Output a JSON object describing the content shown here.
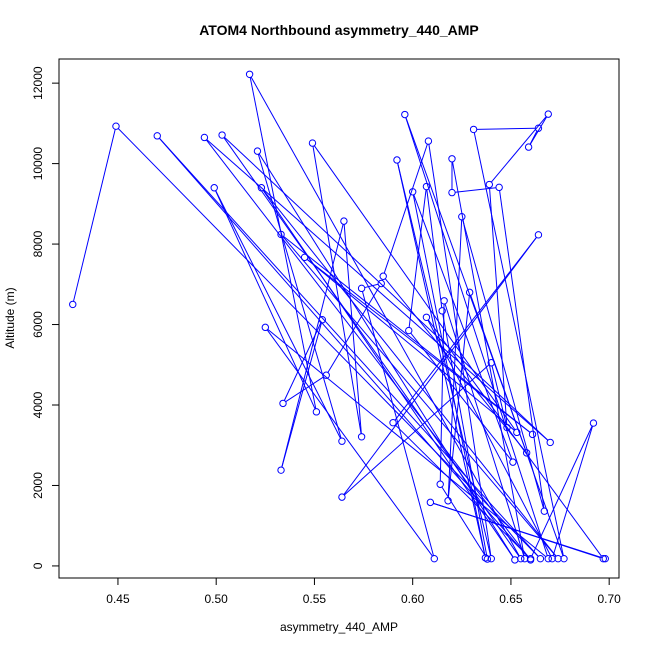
{
  "chart_data": {
    "type": "line",
    "title": "ATOM4 Northbound asymmetry_440_AMP",
    "xlabel": "asymmetry_440_AMP",
    "ylabel": "Altitude (m)",
    "xlim": [
      0.42,
      0.705
    ],
    "ylim": [
      -300,
      12600
    ],
    "xticks": [
      0.45,
      0.5,
      0.55,
      0.6,
      0.65,
      0.7
    ],
    "xtick_labels": [
      "0.45",
      "0.50",
      "0.55",
      "0.60",
      "0.65",
      "0.70"
    ],
    "yticks": [
      0,
      2000,
      4000,
      6000,
      8000,
      10000,
      12000
    ],
    "ytick_labels": [
      "0",
      "2000",
      "4000",
      "6000",
      "8000",
      "10000",
      "12000"
    ],
    "grid": false,
    "marker": "open-circle",
    "series": [
      {
        "color": "#0000ff",
        "points": [
          [
            0.427,
            6500
          ],
          [
            0.449,
            10930
          ],
          [
            0.665,
            180
          ],
          [
            0.47,
            10690
          ],
          [
            0.66,
            150
          ],
          [
            0.494,
            10650
          ],
          [
            0.67,
            3070
          ],
          [
            0.503,
            10710
          ],
          [
            0.655,
            180
          ],
          [
            0.517,
            12220
          ],
          [
            0.551,
            3830
          ],
          [
            0.499,
            9400
          ],
          [
            0.564,
            3100
          ],
          [
            0.521,
            10310
          ],
          [
            0.652,
            150
          ],
          [
            0.523,
            9400
          ],
          [
            0.674,
            180
          ],
          [
            0.533,
            8240
          ],
          [
            0.661,
            3270
          ],
          [
            0.545,
            7670
          ],
          [
            0.653,
            3320
          ],
          [
            0.549,
            10510
          ],
          [
            0.574,
            3210
          ],
          [
            0.565,
            8570
          ],
          [
            0.533,
            2380
          ],
          [
            0.554,
            6120
          ],
          [
            0.534,
            4040
          ],
          [
            0.556,
            4740
          ],
          [
            0.584,
            7020
          ],
          [
            0.574,
            6900
          ],
          [
            0.611,
            180
          ],
          [
            0.525,
            5930
          ],
          [
            0.669,
            180
          ],
          [
            0.596,
            11220
          ],
          [
            0.658,
            2810
          ],
          [
            0.585,
            7200
          ],
          [
            0.608,
            10560
          ],
          [
            0.64,
            180
          ],
          [
            0.592,
            10090
          ],
          [
            0.637,
            200
          ],
          [
            0.6,
            9300
          ],
          [
            0.651,
            2580
          ],
          [
            0.598,
            5850
          ],
          [
            0.607,
            9430
          ],
          [
            0.615,
            6340
          ],
          [
            0.638,
            170
          ],
          [
            0.614,
            2030
          ],
          [
            0.616,
            6590
          ],
          [
            0.657,
            180
          ],
          [
            0.62,
            10120
          ],
          [
            0.62,
            9280
          ],
          [
            0.644,
            9410
          ],
          [
            0.667,
            1360
          ],
          [
            0.625,
            8680
          ],
          [
            0.618,
            1620
          ],
          [
            0.629,
            6800
          ],
          [
            0.677,
            180
          ],
          [
            0.631,
            10850
          ],
          [
            0.664,
            10880
          ],
          [
            0.659,
            10410
          ],
          [
            0.669,
            11230
          ],
          [
            0.639,
            9480
          ],
          [
            0.648,
            3440
          ],
          [
            0.64,
            5050
          ],
          [
            0.564,
            1710
          ],
          [
            0.664,
            8230
          ],
          [
            0.59,
            3560
          ],
          [
            0.66,
            180
          ],
          [
            0.692,
            3550
          ],
          [
            0.671,
            180
          ],
          [
            0.607,
            6180
          ],
          [
            0.697,
            180
          ],
          [
            0.609,
            1580
          ],
          [
            0.698,
            180
          ]
        ]
      }
    ]
  }
}
